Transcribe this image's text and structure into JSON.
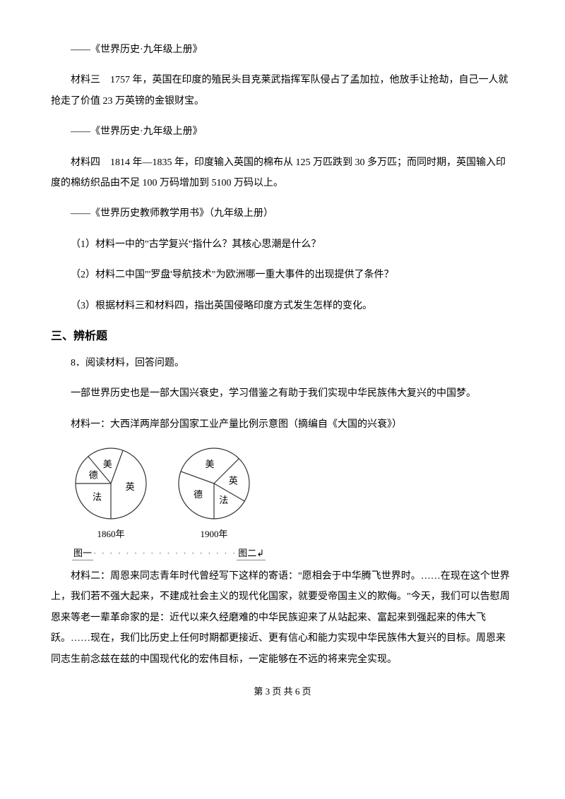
{
  "source1": "——《世界历史·九年级上册》",
  "material3_label": "材料三",
  "material3_text": "1757 年，英国在印度的殖民头目克莱武指挥军队侵占了孟加拉，他放手让抢劫，自己一人就抢走了价值 23 万英镑的金银财宝。",
  "source2": "——《世界历史·九年级上册》",
  "material4_label": "材料四",
  "material4_text": "1814 年—1835 年，印度输入英国的棉布从 125 万匹跌到 30 多万匹；而同时期，英国输入印度的棉纺织品由不足 100 万码增加到 5100 万码以上。",
  "source3": "——《世界历史教师教学用书》（九年级上册）",
  "q1": "（1）材料一中的\"古学复兴\"指什么？其核心思潮是什么？",
  "q2": "（2）材料二中国\"'罗盘'导航技术\"为欧洲哪一重大事件的出现提供了条件？",
  "q3": "（3）根据材料三和材料四，指出英国侵略印度方式发生怎样的变化。",
  "section_heading": "三、辨析题",
  "q8": "8．阅读材料，回答问题。",
  "intro_line": "一部世界历史也是一部大国兴衰史，学习借鉴之有助于我们实现中华民族伟大复兴的中国梦。",
  "material1_line": "材料一：大西洋两岸部分国家工业产量比例示意图（摘编自《大国的兴衰》）",
  "charts": {
    "pie1": {
      "type": "pie",
      "year_label": "1860年",
      "radius": 50,
      "stroke": "#333333",
      "fill": "#ffffff",
      "text_color": "#000000",
      "label_fontsize": 13,
      "slices": [
        {
          "label": "英",
          "start_deg": -70,
          "end_deg": 90
        },
        {
          "label": "美",
          "start_deg": -130,
          "end_deg": -70
        },
        {
          "label": "德",
          "start_deg": -180,
          "end_deg": -130
        },
        {
          "label": "法",
          "start_deg": 90,
          "end_deg": 180
        }
      ]
    },
    "pie2": {
      "type": "pie",
      "year_label": "1900年",
      "radius": 50,
      "stroke": "#333333",
      "fill": "#ffffff",
      "text_color": "#000000",
      "label_fontsize": 13,
      "slices": [
        {
          "label": "英",
          "start_deg": -45,
          "end_deg": 30
        },
        {
          "label": "法",
          "start_deg": 30,
          "end_deg": 90
        },
        {
          "label": "德",
          "start_deg": 90,
          "end_deg": 200
        },
        {
          "label": "美",
          "start_deg": 200,
          "end_deg": 315
        }
      ]
    },
    "fig1_label": "图一",
    "fig2_label": "图二↲",
    "dots_text": "· · · · · · · · · · · · · · · · · ·"
  },
  "material2_text": "材料二：周恩来同志青年时代曾经写下这样的寄语：\"愿相会于中华腾飞世界时。……在现在这个世界上，我们若不强大起来，不建成社会主义的现代化国家，就要受帝国主义的欺侮。\"今天，我们可以告慰周恩来等老一辈革命家的是：近代以来久经磨难的中华民族迎来了从站起来、富起来到强起来的伟大飞跃。……现在，我们比历史上任何时期都更接近、更有信心和能力实现中华民族伟大复兴的目标。周恩来同志生前念兹在兹的中国现代化的宏伟目标，一定能够在不远的将来完全实现。",
  "footer": "第 3 页 共 6 页"
}
